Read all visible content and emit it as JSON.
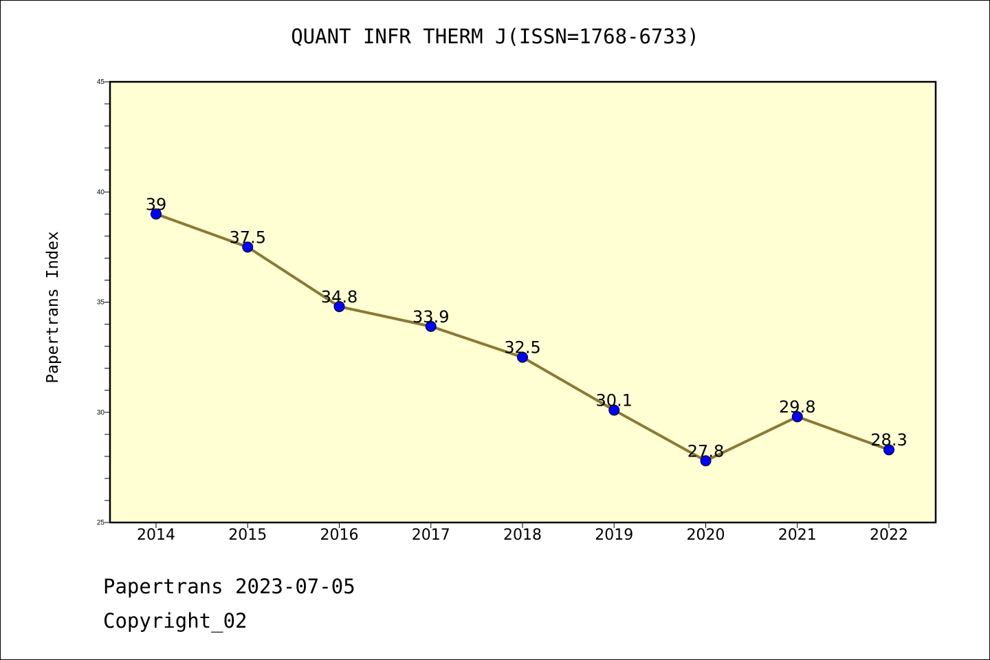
{
  "chart_data": {
    "type": "line",
    "title": "QUANT INFR THERM J(ISSN=1768-6733)",
    "xlabel": "",
    "ylabel": "Papertrans Index",
    "categories": [
      "2014",
      "2015",
      "2016",
      "2017",
      "2018",
      "2019",
      "2020",
      "2021",
      "2022"
    ],
    "series": [
      {
        "values": [
          39,
          37.5,
          34.8,
          33.9,
          32.5,
          30.1,
          27.8,
          29.8,
          28.3
        ],
        "data_labels": [
          "39",
          "37.5",
          "34.8",
          "33.9",
          "32.5",
          "30.1",
          "27.8",
          "29.8",
          "28.3"
        ],
        "line_color": "#8B7A35",
        "marker_color": "#0000FF"
      }
    ],
    "ylim": [
      25,
      45
    ],
    "yticks": [
      "25",
      "30",
      "35",
      "40",
      "45"
    ],
    "grid": false,
    "plot_background": "#FFFFD3"
  },
  "footer": {
    "line1": "Papertrans 2023-07-05",
    "line2": "Copyright_02"
  }
}
